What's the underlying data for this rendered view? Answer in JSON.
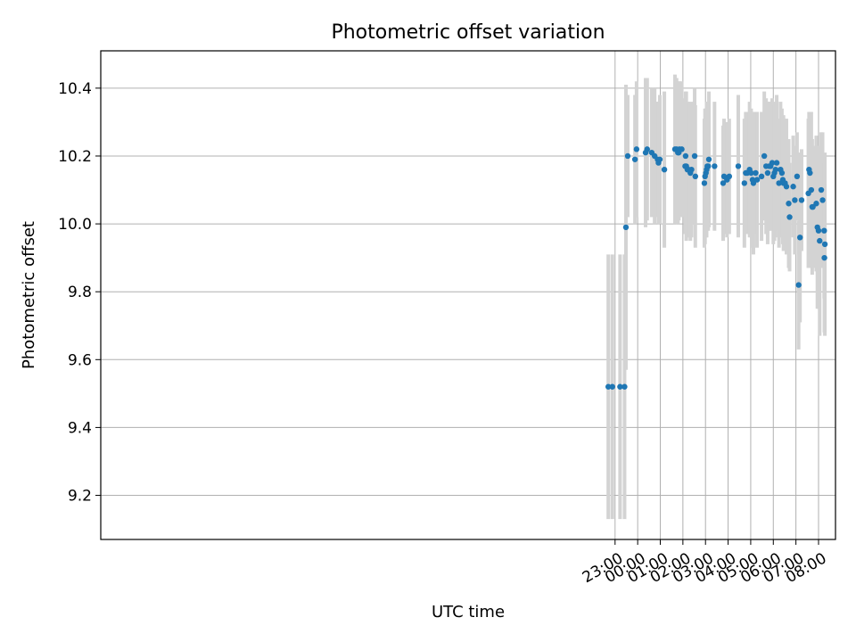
{
  "chart_data": {
    "type": "scatter",
    "title": "Photometric offset variation",
    "xlabel": "UTC time",
    "ylabel": "Photometric offset",
    "x_unit": "hours (UTC, relative to 00:00)",
    "xlim": [
      -23.75,
      8.75
    ],
    "ylim": [
      9.07,
      10.51
    ],
    "xticks": [
      {
        "x": -1.0,
        "label": "23:00"
      },
      {
        "x": 0.0,
        "label": "00:00"
      },
      {
        "x": 1.0,
        "label": "01:00"
      },
      {
        "x": 2.0,
        "label": "02:00"
      },
      {
        "x": 3.0,
        "label": "03:00"
      },
      {
        "x": 4.0,
        "label": "04:00"
      },
      {
        "x": 5.0,
        "label": "05:00"
      },
      {
        "x": 6.0,
        "label": "06:00"
      },
      {
        "x": 7.0,
        "label": "07:00"
      },
      {
        "x": 8.0,
        "label": "08:00"
      }
    ],
    "yticks": [
      9.2,
      9.4,
      9.6,
      9.8,
      10.0,
      10.2,
      10.4
    ],
    "grid": true,
    "colors": {
      "points": "#1f77b4",
      "errorbars": "#d3d3d3",
      "grid": "#b0b0b0"
    },
    "points": [
      [
        -1.3,
        9.52,
        0.39
      ],
      [
        -1.12,
        9.52,
        0.39
      ],
      [
        -0.78,
        9.52,
        0.39
      ],
      [
        -0.58,
        9.52,
        0.39
      ],
      [
        -0.52,
        9.99,
        0.42
      ],
      [
        -0.44,
        10.2,
        0.18
      ],
      [
        -0.12,
        10.19,
        0.19
      ],
      [
        -0.05,
        10.22,
        0.2
      ],
      [
        0.35,
        10.21,
        0.22
      ],
      [
        0.42,
        10.22,
        0.21
      ],
      [
        0.62,
        10.21,
        0.19
      ],
      [
        0.75,
        10.2,
        0.2
      ],
      [
        0.88,
        10.19,
        0.17
      ],
      [
        0.92,
        10.18,
        0.18
      ],
      [
        0.98,
        10.19,
        0.19
      ],
      [
        1.18,
        10.16,
        0.23
      ],
      [
        1.65,
        10.22,
        0.22
      ],
      [
        1.72,
        10.22,
        0.21
      ],
      [
        1.78,
        10.21,
        0.21
      ],
      [
        1.82,
        10.21,
        0.2
      ],
      [
        1.85,
        10.22,
        0.2
      ],
      [
        1.95,
        10.22,
        0.2
      ],
      [
        2.1,
        10.17,
        0.2
      ],
      [
        2.12,
        10.2,
        0.19
      ],
      [
        2.15,
        10.17,
        0.22
      ],
      [
        2.2,
        10.16,
        0.2
      ],
      [
        2.25,
        10.16,
        0.2
      ],
      [
        2.33,
        10.15,
        0.2
      ],
      [
        2.38,
        10.16,
        0.2
      ],
      [
        2.52,
        10.2,
        0.2
      ],
      [
        2.55,
        10.14,
        0.21
      ],
      [
        2.95,
        10.12,
        0.19
      ],
      [
        2.98,
        10.14,
        0.2
      ],
      [
        3.02,
        10.15,
        0.19
      ],
      [
        3.05,
        10.16,
        0.2
      ],
      [
        3.08,
        10.17,
        0.19
      ],
      [
        3.12,
        10.17,
        0.19
      ],
      [
        3.15,
        10.19,
        0.2
      ],
      [
        3.4,
        10.17,
        0.19
      ],
      [
        3.78,
        10.12,
        0.17
      ],
      [
        3.82,
        10.14,
        0.17
      ],
      [
        3.95,
        10.13,
        0.17
      ],
      [
        4.05,
        10.14,
        0.17
      ],
      [
        4.45,
        10.17,
        0.21
      ],
      [
        4.72,
        10.12,
        0.19
      ],
      [
        4.78,
        10.15,
        0.18
      ],
      [
        4.85,
        10.15,
        0.18
      ],
      [
        4.95,
        10.16,
        0.2
      ],
      [
        5.02,
        10.15,
        0.19
      ],
      [
        5.08,
        10.13,
        0.2
      ],
      [
        5.12,
        10.12,
        0.21
      ],
      [
        5.22,
        10.15,
        0.18
      ],
      [
        5.28,
        10.13,
        0.2
      ],
      [
        5.48,
        10.14,
        0.19
      ],
      [
        5.6,
        10.2,
        0.19
      ],
      [
        5.68,
        10.17,
        0.2
      ],
      [
        5.75,
        10.15,
        0.21
      ],
      [
        5.82,
        10.17,
        0.19
      ],
      [
        5.88,
        10.17,
        0.19
      ],
      [
        5.95,
        10.18,
        0.19
      ],
      [
        6.0,
        10.14,
        0.2
      ],
      [
        6.05,
        10.15,
        0.2
      ],
      [
        6.1,
        10.16,
        0.2
      ],
      [
        6.15,
        10.18,
        0.2
      ],
      [
        6.25,
        10.12,
        0.19
      ],
      [
        6.32,
        10.16,
        0.2
      ],
      [
        6.38,
        10.15,
        0.19
      ],
      [
        6.42,
        10.13,
        0.19
      ],
      [
        6.45,
        10.12,
        0.2
      ],
      [
        6.52,
        10.12,
        0.19
      ],
      [
        6.58,
        10.11,
        0.2
      ],
      [
        6.68,
        10.06,
        0.19
      ],
      [
        6.72,
        10.02,
        0.16
      ],
      [
        6.88,
        10.11,
        0.15
      ],
      [
        6.95,
        10.07,
        0.16
      ],
      [
        7.05,
        10.14,
        0.13
      ],
      [
        7.12,
        9.82,
        0.19
      ],
      [
        7.18,
        9.96,
        0.25
      ],
      [
        7.25,
        10.07,
        0.15
      ],
      [
        7.55,
        10.09,
        0.22
      ],
      [
        7.58,
        10.16,
        0.17
      ],
      [
        7.62,
        10.15,
        0.18
      ],
      [
        7.68,
        10.1,
        0.23
      ],
      [
        7.72,
        10.05,
        0.2
      ],
      [
        7.75,
        10.05,
        0.18
      ],
      [
        7.9,
        10.06,
        0.2
      ],
      [
        7.95,
        9.99,
        0.24
      ],
      [
        8.0,
        9.98,
        0.23
      ],
      [
        8.05,
        9.95,
        0.28
      ],
      [
        8.12,
        10.1,
        0.17
      ],
      [
        8.18,
        10.07,
        0.2
      ],
      [
        8.25,
        9.98,
        0.2
      ],
      [
        8.28,
        9.94,
        0.27
      ],
      [
        8.26,
        9.9,
        0.22
      ]
    ]
  }
}
